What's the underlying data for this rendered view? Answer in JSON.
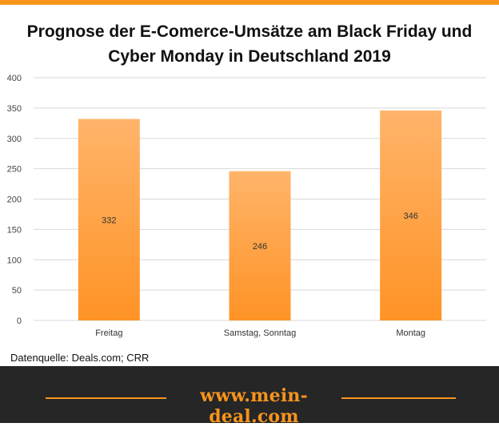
{
  "chart_data": {
    "type": "bar",
    "title": "Prognose der E-Comerce-Umsätze am Black Friday und Cyber Monday in Deutschland 2019",
    "categories": [
      "Freitag",
      "Samstag, Sonntag",
      "Montag"
    ],
    "values": [
      332,
      246,
      346
    ],
    "data_labels": [
      "332",
      "246",
      "346"
    ],
    "ylim": [
      0,
      400
    ],
    "yticks": [
      0,
      50,
      100,
      150,
      200,
      250,
      300,
      350,
      400
    ],
    "xlabel": "",
    "ylabel": "",
    "grid": true,
    "bar_gradient": {
      "top": "#ffb46a",
      "bottom": "#ff9326"
    }
  },
  "source": "Datenquelle: Deals.com; CRR",
  "footer": {
    "text": "www.mein-deal.com"
  },
  "colors": {
    "accent": "#f7941d",
    "footer_bg": "#262626",
    "grid": "#d9d9d9"
  }
}
